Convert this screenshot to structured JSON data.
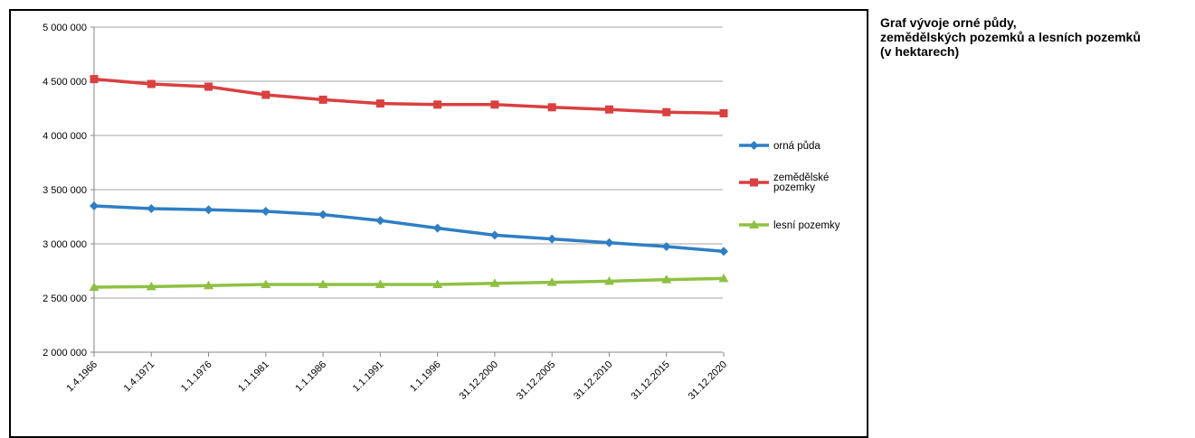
{
  "side_title": {
    "line1": "Graf vývoje orné půdy,",
    "line2": "zemědělských pozemků a lesních pozemků",
    "line3": "(v hektarech)"
  },
  "chart_data": {
    "type": "line",
    "title": "Graf vývoje orné půdy, zemědělských pozemků a lesních pozemků (v hektarech)",
    "xlabel": "",
    "ylabel": "",
    "categories": [
      "1.4.1966",
      "1.4.1971",
      "1.1.1976",
      "1.1.1981",
      "1.1.1986",
      "1.1.1991",
      "1.1.1996",
      "31.12.2000",
      "31.12.2005",
      "31.12.2010",
      "31.12.2015",
      "31.12.2020"
    ],
    "ylim": [
      2000000,
      5000000
    ],
    "yticks": [
      2000000,
      2500000,
      3000000,
      3500000,
      4000000,
      4500000,
      5000000
    ],
    "ytick_labels": [
      "2 000 000",
      "2 500 000",
      "3 000 000",
      "3 500 000",
      "4 000 000",
      "4 500 000",
      "5 000 000"
    ],
    "grid": true,
    "legend_position": "right",
    "series": [
      {
        "name": "orná půda",
        "name_lines": [
          "orná půda"
        ],
        "color": "#2f7ec4",
        "marker": "diamond",
        "values": [
          3350000,
          3325000,
          3315000,
          3300000,
          3270000,
          3215000,
          3145000,
          3080000,
          3045000,
          3010000,
          2975000,
          2930000
        ]
      },
      {
        "name": "zemědělské pozemky",
        "name_lines": [
          "zemědělské",
          "pozemky"
        ],
        "color": "#d94040",
        "marker": "square",
        "values": [
          4520000,
          4475000,
          4450000,
          4375000,
          4330000,
          4295000,
          4285000,
          4285000,
          4260000,
          4240000,
          4215000,
          4205000
        ]
      },
      {
        "name": "lesní pozemky",
        "name_lines": [
          "lesní pozemky"
        ],
        "color": "#8fc043",
        "marker": "triangle",
        "values": [
          2600000,
          2605000,
          2615000,
          2625000,
          2625000,
          2625000,
          2625000,
          2635000,
          2645000,
          2655000,
          2670000,
          2680000
        ]
      }
    ]
  }
}
